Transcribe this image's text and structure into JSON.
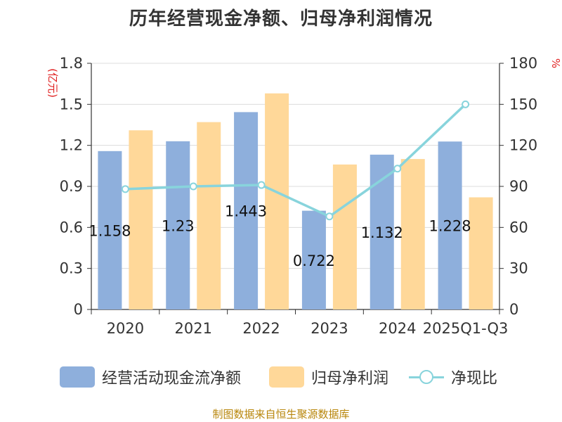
{
  "title": "历年经营现金净额、归母净利润情况",
  "source_note": "制图数据来自恒生聚源数据库",
  "chart_data": {
    "type": "bar",
    "title": "历年经营现金净额、归母净利润情况",
    "categories": [
      "2020",
      "2021",
      "2022",
      "2023",
      "2024",
      "2025Q1-Q3"
    ],
    "y_left": {
      "label": "(亿元)",
      "min": 0,
      "max": 1.8,
      "ticks": [
        "0",
        "0.3",
        "0.6",
        "0.9",
        "1.2",
        "1.5",
        "1.8"
      ]
    },
    "y_right": {
      "label": "%",
      "min": 0,
      "max": 180,
      "ticks": [
        "0",
        "30",
        "60",
        "90",
        "120",
        "150",
        "180"
      ]
    },
    "series": [
      {
        "name": "经营活动现金流净额",
        "type": "bar",
        "axis": "left",
        "color": "#8eafdc",
        "values": [
          1.158,
          1.23,
          1.443,
          0.722,
          1.132,
          1.228
        ],
        "labels": [
          "1.158",
          "1.23",
          "1.443",
          "0.722",
          "1.132",
          "1.228"
        ]
      },
      {
        "name": "归母净利润",
        "type": "bar",
        "axis": "left",
        "color": "#ffd899",
        "values": [
          1.31,
          1.37,
          1.58,
          1.06,
          1.1,
          0.82
        ]
      },
      {
        "name": "净现比",
        "type": "line",
        "axis": "right",
        "color": "#88d4dc",
        "values": [
          88,
          90,
          91,
          68,
          103,
          150
        ]
      }
    ],
    "grid": true,
    "legend_position": "bottom"
  }
}
